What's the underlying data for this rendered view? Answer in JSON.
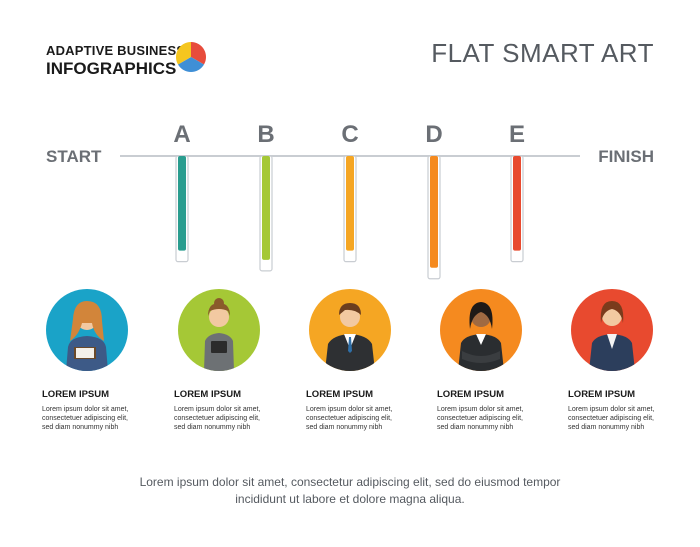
{
  "header": {
    "brand_line1": "ADAPTIVE BUSINESS",
    "brand_line2": "INFOGRAPHICS",
    "title": "FLAT SMART ART",
    "logo_colors": [
      "#e74c3c",
      "#3f8fd6",
      "#f5c61f"
    ]
  },
  "timeline": {
    "start_label": "START",
    "finish_label": "FINISH",
    "steps": [
      {
        "letter": "A",
        "color": "#2a9d8f",
        "level": 0.8
      },
      {
        "letter": "B",
        "color": "#a5c836",
        "level": 0.87
      },
      {
        "letter": "C",
        "color": "#f5a623",
        "level": 0.8
      },
      {
        "letter": "D",
        "color": "#f58a1f",
        "level": 0.93
      },
      {
        "letter": "E",
        "color": "#e84a2f",
        "level": 0.8
      }
    ]
  },
  "people": [
    {
      "heading": "LOREM IPSUM",
      "line1": "Lorem ipsum dolor sit amet,",
      "line2": "consectetuer adipiscing elit,",
      "line3": "sed diam nonummy nibh",
      "circle_color": "#1aa3c8",
      "icon": "woman-with-notebook-icon"
    },
    {
      "heading": "LOREM IPSUM",
      "line1": "Lorem ipsum dolor sit amet,",
      "line2": "consectetuer adipiscing elit,",
      "line3": "sed diam nonummy nibh",
      "circle_color": "#a5c836",
      "icon": "woman-with-tablet-icon"
    },
    {
      "heading": "LOREM IPSUM",
      "line1": "Lorem ipsum dolor sit amet,",
      "line2": "consectetuer adipiscing elit,",
      "line3": "sed diam nonummy nibh",
      "circle_color": "#f5a623",
      "icon": "businessman-icon"
    },
    {
      "heading": "LOREM IPSUM",
      "line1": "Lorem ipsum dolor sit amet,",
      "line2": "consectetuer adipiscing elit,",
      "line3": "sed diam nonummy nibh",
      "circle_color": "#f58a1f",
      "icon": "businesswoman-arms-crossed-icon"
    },
    {
      "heading": "LOREM IPSUM",
      "line1": "Lorem ipsum dolor sit amet,",
      "line2": "consectetuer adipiscing elit,",
      "line3": "sed diam nonummy nibh",
      "circle_color": "#e84a2f",
      "icon": "businesswoman-icon"
    }
  ],
  "footer": {
    "line1": "Lorem ipsum dolor sit amet, consectetur adipiscing elit, sed do eiusmod tempor",
    "line2": "incididunt ut labore et dolore magna aliqua."
  }
}
